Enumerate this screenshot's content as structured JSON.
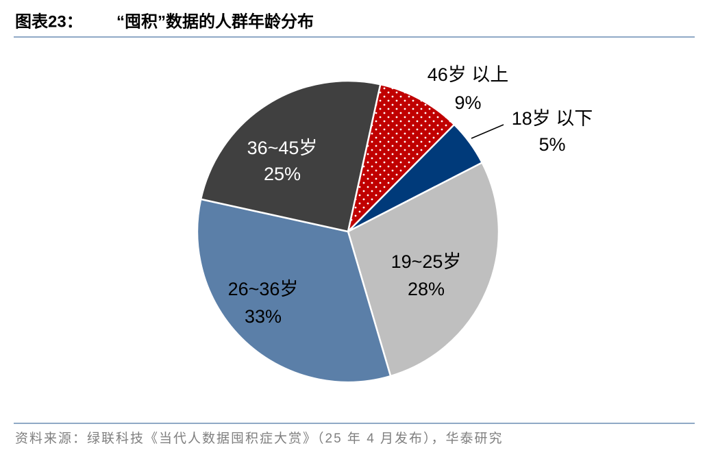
{
  "chart_data": {
    "type": "pie",
    "figure_label": "图表23：",
    "title": "“囤积”数据的人群年龄分布",
    "categories": [
      "46岁 以上",
      "18岁 以下",
      "19~25岁",
      "26~36岁",
      "36~45岁"
    ],
    "values": [
      9,
      5,
      28,
      33,
      25
    ],
    "value_labels": [
      "9%",
      "5%",
      "28%",
      "33%",
      "25%"
    ],
    "colors": [
      "#c00000",
      "#003a7a",
      "#bfbfbf",
      "#5b7fa8",
      "#404040"
    ],
    "source": "资料来源：绿联科技《当代人数据囤积症大赏》（25 年 4 月发布），华泰研究"
  }
}
